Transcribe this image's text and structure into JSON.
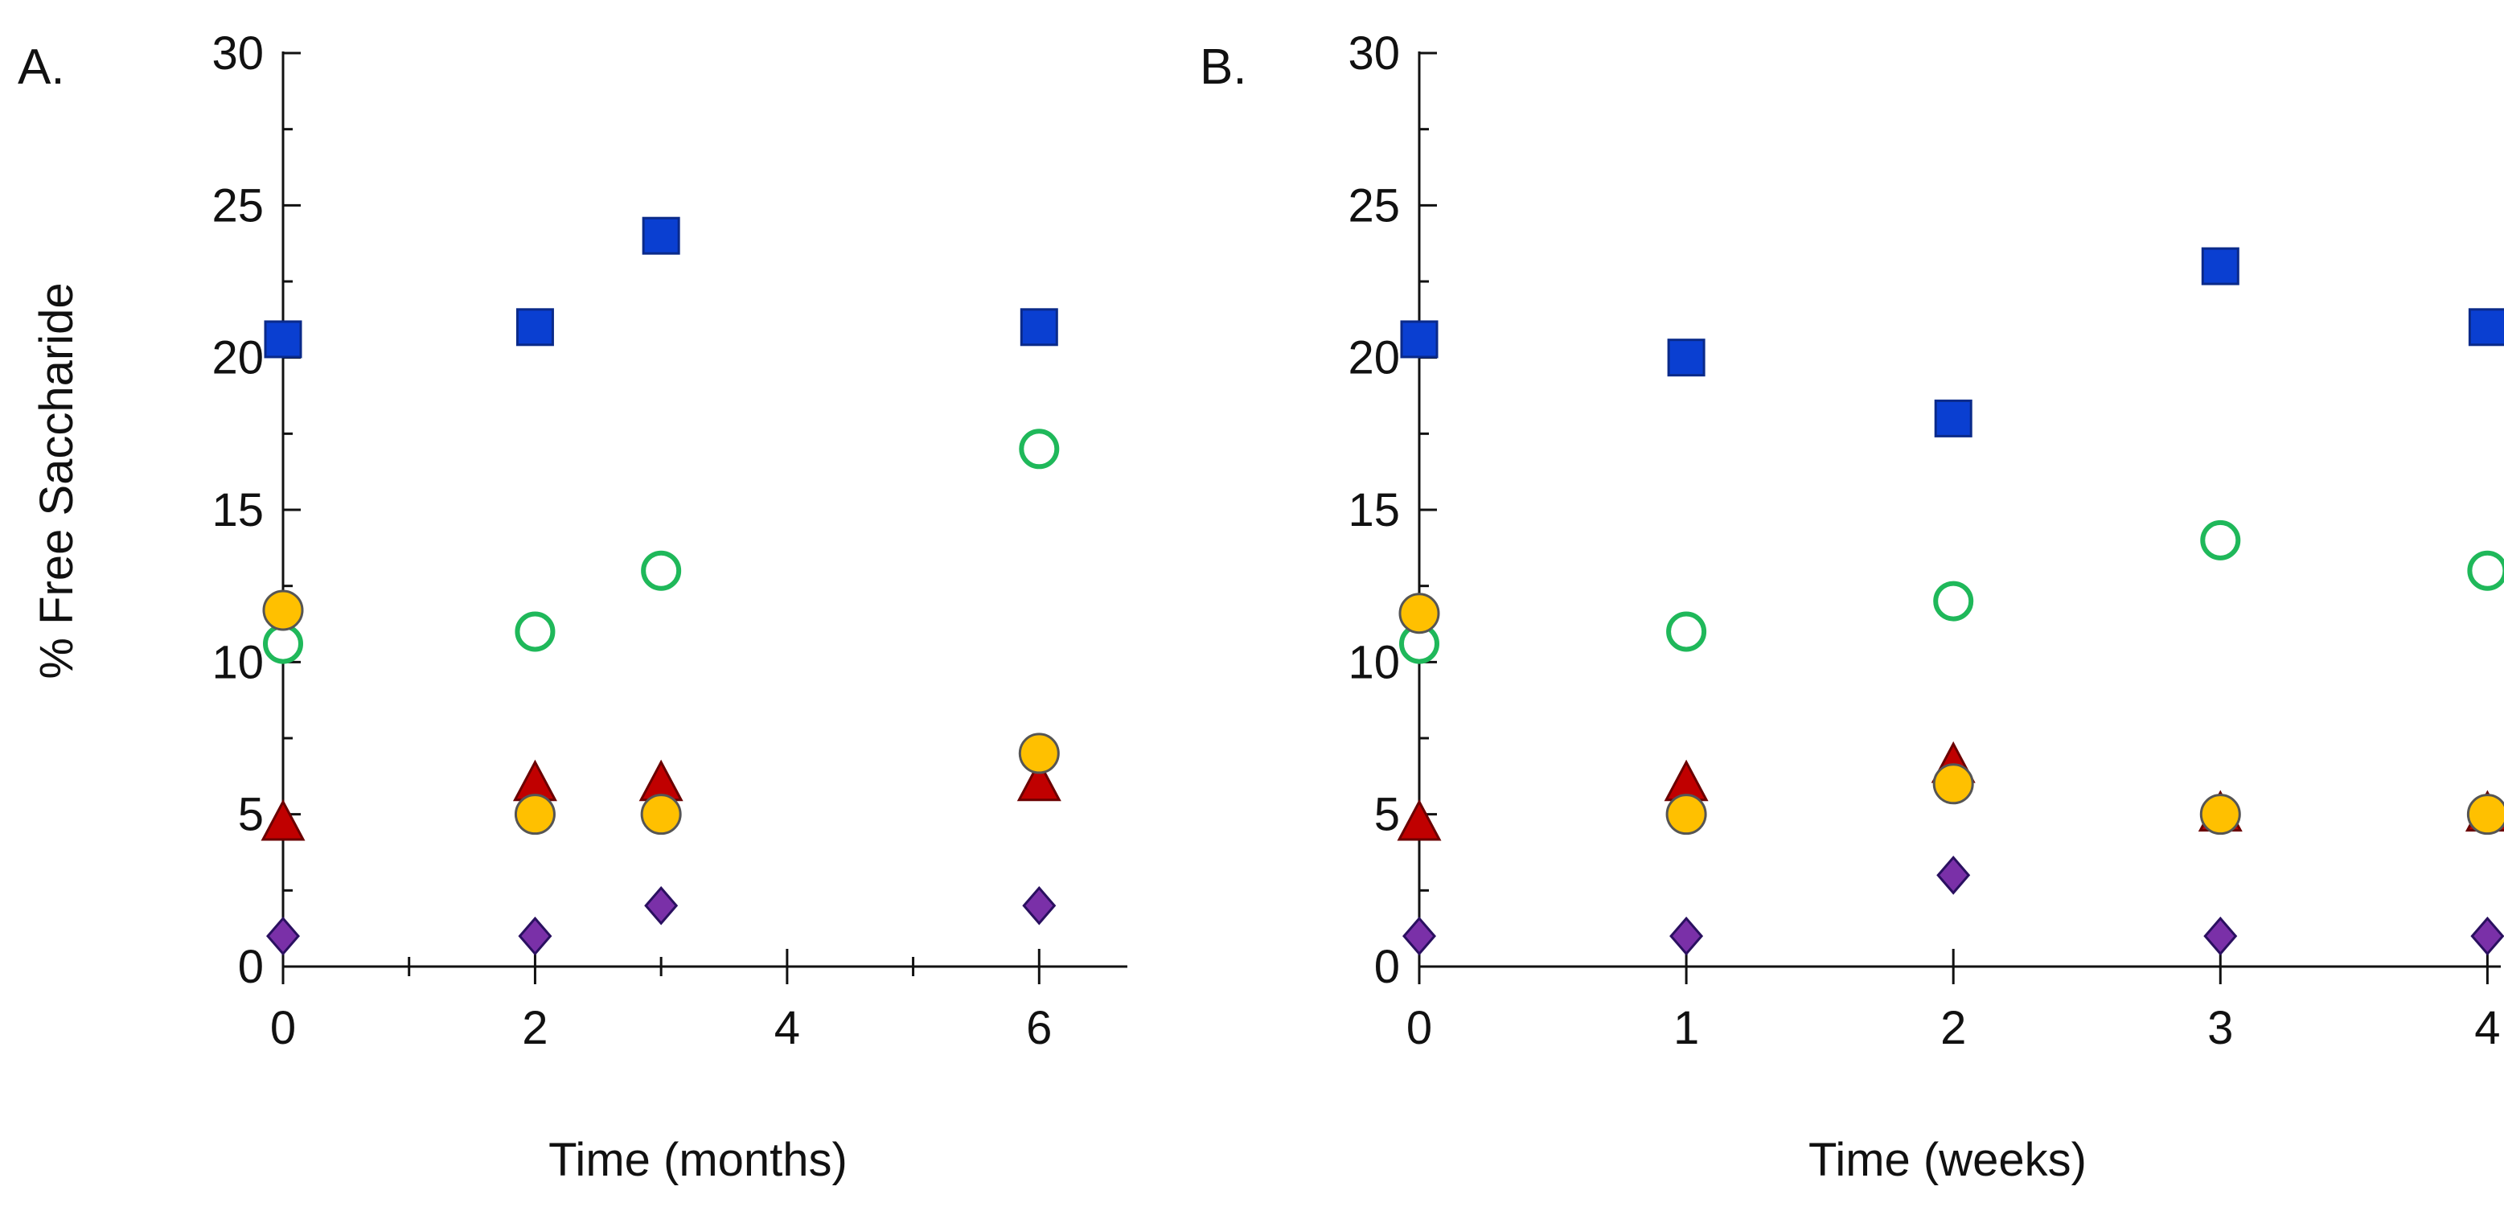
{
  "colors": {
    "axis": "#111111",
    "square": "#0a3fd1",
    "square_edge": "#0a2a8a",
    "open_circle": "#1fb85a",
    "filled_circle": "#ffc000",
    "filled_circle_edge": "#555555",
    "triangle": "#c00000",
    "triangle_edge": "#6a0000",
    "diamond": "#7a30a8",
    "diamond_edge": "#2a1060"
  },
  "chart_data": [
    {
      "type": "scatter",
      "panel_label": "A.",
      "xlabel": "Time (months)",
      "ylabel": "% Free Saccharide",
      "xlim": [
        0,
        6.7
      ],
      "ylim": [
        0,
        30
      ],
      "xticks": [
        0,
        2,
        4,
        6
      ],
      "xminor": [
        1,
        3,
        5
      ],
      "yticks": [
        0,
        5,
        10,
        15,
        20,
        25,
        30
      ],
      "series": [
        {
          "marker": "square",
          "x": [
            0,
            2,
            3,
            6
          ],
          "y": [
            20.6,
            21,
            24,
            21
          ]
        },
        {
          "marker": "open_circle",
          "x": [
            0,
            2,
            3,
            6
          ],
          "y": [
            10.6,
            11,
            13,
            17
          ]
        },
        {
          "marker": "triangle",
          "x": [
            0,
            2,
            3,
            6
          ],
          "y": [
            4.7,
            6,
            6,
            6
          ]
        },
        {
          "marker": "filled_circle",
          "x": [
            0,
            2,
            3,
            6
          ],
          "y": [
            11.7,
            5,
            5,
            7
          ]
        },
        {
          "marker": "diamond",
          "x": [
            0,
            2,
            3,
            6
          ],
          "y": [
            1,
            1,
            2,
            2
          ]
        }
      ]
    },
    {
      "type": "scatter",
      "panel_label": "B.",
      "xlabel": "Time (weeks)",
      "ylabel": "",
      "xlim": [
        0,
        4.05
      ],
      "ylim": [
        0,
        30
      ],
      "xticks": [
        0,
        1,
        2,
        3,
        4
      ],
      "xminor": [],
      "yticks": [
        0,
        5,
        10,
        15,
        20,
        25,
        30
      ],
      "series": [
        {
          "marker": "square",
          "x": [
            0,
            1,
            2,
            3,
            4
          ],
          "y": [
            20.6,
            20,
            18,
            23,
            21
          ]
        },
        {
          "marker": "open_circle",
          "x": [
            0,
            1,
            2,
            3,
            4
          ],
          "y": [
            10.6,
            11,
            12,
            14,
            13
          ]
        },
        {
          "marker": "triangle",
          "x": [
            0,
            1,
            2,
            3,
            4
          ],
          "y": [
            4.7,
            6,
            6.6,
            5,
            5
          ]
        },
        {
          "marker": "filled_circle",
          "x": [
            0,
            1,
            2,
            3,
            4
          ],
          "y": [
            11.6,
            5,
            6,
            5,
            5
          ]
        },
        {
          "marker": "diamond",
          "x": [
            0,
            1,
            2,
            3,
            4
          ],
          "y": [
            1,
            1,
            3,
            1,
            1
          ]
        }
      ]
    }
  ]
}
